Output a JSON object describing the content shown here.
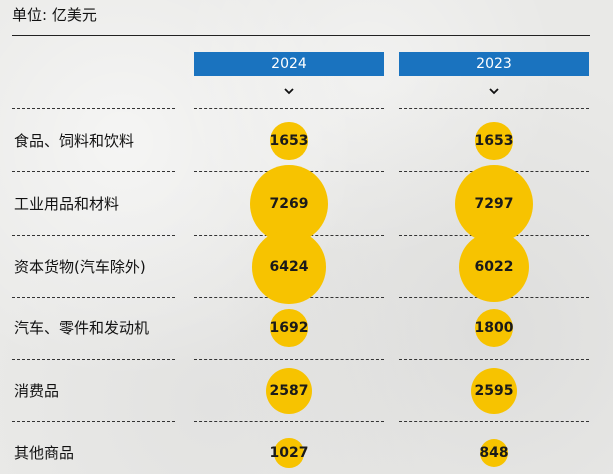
{
  "unit_label": "单位: 亿美元",
  "chart_data": {
    "type": "bubble-table",
    "columns": [
      "2024",
      "2023"
    ],
    "categories": [
      "食品、饲料和饮料",
      "工业用品和材料",
      "资本货物(汽车除外)",
      "汽车、零件和发动机",
      "消费品",
      "其他商品"
    ],
    "series": [
      {
        "name": "2024",
        "values": [
          1653,
          7269,
          6424,
          1692,
          2587,
          1027
        ]
      },
      {
        "name": "2023",
        "values": [
          1653,
          7297,
          6022,
          1800,
          2595,
          848
        ]
      }
    ],
    "colors": {
      "bubble": "#f7c300",
      "header": "#1a73bf"
    }
  },
  "icons": {
    "sort": "chevron-down-icon"
  }
}
